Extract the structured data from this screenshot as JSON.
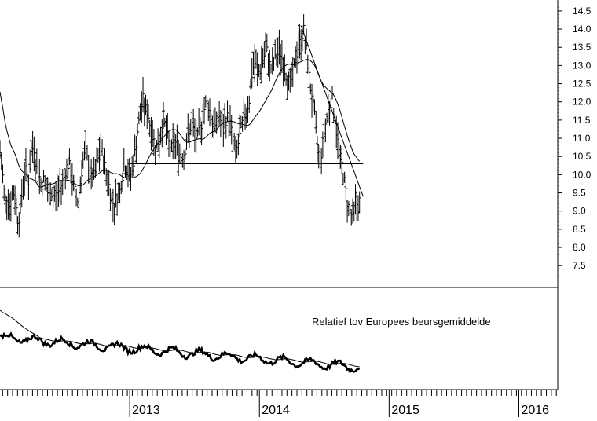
{
  "chart_data": [
    {
      "type": "line",
      "subtype": "ohlc-bar",
      "panel": "price",
      "x_unit": "year",
      "xlim": [
        2012.0,
        2016.3
      ],
      "ylim": [
        6.9,
        14.8
      ],
      "y_axis_side": "right",
      "yticks": [
        "14.5",
        "14.0",
        "13.5",
        "13.0",
        "12.5",
        "12.0",
        "11.5",
        "11.0",
        "10.5",
        "10.0",
        "9.5",
        "9.0",
        "8.5",
        "8.0",
        "7.5"
      ],
      "ytick_values": [
        14.5,
        14.0,
        13.5,
        13.0,
        12.5,
        12.0,
        11.5,
        11.0,
        10.5,
        10.0,
        9.5,
        9.0,
        8.5,
        8.0,
        7.5
      ],
      "price_path": [
        [
          2012.0,
          10.6
        ],
        [
          2012.02,
          10.0
        ],
        [
          2012.04,
          9.2
        ],
        [
          2012.06,
          9.5
        ],
        [
          2012.08,
          9.0
        ],
        [
          2012.1,
          9.6
        ],
        [
          2012.12,
          9.2
        ],
        [
          2012.14,
          8.7
        ],
        [
          2012.16,
          9.1
        ],
        [
          2012.18,
          9.9
        ],
        [
          2012.2,
          10.1
        ],
        [
          2012.22,
          9.8
        ],
        [
          2012.24,
          10.6
        ],
        [
          2012.26,
          10.8
        ],
        [
          2012.28,
          10.2
        ],
        [
          2012.3,
          10.0
        ],
        [
          2012.32,
          9.7
        ],
        [
          2012.34,
          9.9
        ],
        [
          2012.36,
          9.6
        ],
        [
          2012.38,
          9.4
        ],
        [
          2012.4,
          9.5
        ],
        [
          2012.42,
          9.4
        ],
        [
          2012.44,
          9.5
        ],
        [
          2012.46,
          9.6
        ],
        [
          2012.48,
          9.8
        ],
        [
          2012.5,
          10.0
        ],
        [
          2012.52,
          10.3
        ],
        [
          2012.54,
          10.2
        ],
        [
          2012.56,
          9.8
        ],
        [
          2012.58,
          9.5
        ],
        [
          2012.6,
          9.3
        ],
        [
          2012.62,
          9.8
        ],
        [
          2012.64,
          10.4
        ],
        [
          2012.66,
          10.6
        ],
        [
          2012.68,
          10.3
        ],
        [
          2012.7,
          9.9
        ],
        [
          2012.72,
          9.9
        ],
        [
          2012.74,
          10.1
        ],
        [
          2012.76,
          10.5
        ],
        [
          2012.78,
          10.7
        ],
        [
          2012.8,
          10.4
        ],
        [
          2012.82,
          10.0
        ],
        [
          2012.84,
          9.7
        ],
        [
          2012.86,
          9.3
        ],
        [
          2012.88,
          9.2
        ],
        [
          2012.9,
          9.4
        ],
        [
          2012.92,
          9.5
        ],
        [
          2012.94,
          9.9
        ],
        [
          2012.96,
          10.3
        ],
        [
          2012.98,
          10.1
        ],
        [
          2013.0,
          9.9
        ],
        [
          2013.02,
          10.2
        ],
        [
          2013.04,
          10.6
        ],
        [
          2013.06,
          11.2
        ],
        [
          2013.08,
          11.6
        ],
        [
          2013.1,
          12.1
        ],
        [
          2013.12,
          11.8
        ],
        [
          2013.14,
          11.7
        ],
        [
          2013.16,
          11.3
        ],
        [
          2013.18,
          11.0
        ],
        [
          2013.2,
          10.8
        ],
        [
          2013.22,
          10.8
        ],
        [
          2013.24,
          11.1
        ],
        [
          2013.26,
          11.6
        ],
        [
          2013.28,
          11.2
        ],
        [
          2013.3,
          10.9
        ],
        [
          2013.32,
          10.7
        ],
        [
          2013.34,
          10.8
        ],
        [
          2013.36,
          10.9
        ],
        [
          2013.38,
          10.6
        ],
        [
          2013.4,
          10.5
        ],
        [
          2013.42,
          10.6
        ],
        [
          2013.44,
          10.9
        ],
        [
          2013.46,
          11.2
        ],
        [
          2013.48,
          11.4
        ],
        [
          2013.5,
          11.1
        ],
        [
          2013.52,
          11.0
        ],
        [
          2013.54,
          11.2
        ],
        [
          2013.56,
          11.5
        ],
        [
          2013.58,
          11.9
        ],
        [
          2013.6,
          12.0
        ],
        [
          2013.62,
          11.7
        ],
        [
          2013.64,
          11.4
        ],
        [
          2013.66,
          11.3
        ],
        [
          2013.68,
          11.6
        ],
        [
          2013.7,
          11.5
        ],
        [
          2013.72,
          11.2
        ],
        [
          2013.74,
          11.5
        ],
        [
          2013.76,
          11.6
        ],
        [
          2013.78,
          11.3
        ],
        [
          2013.8,
          10.8
        ],
        [
          2013.82,
          10.6
        ],
        [
          2013.84,
          10.9
        ],
        [
          2013.86,
          11.3
        ],
        [
          2013.88,
          11.5
        ],
        [
          2013.9,
          11.8
        ],
        [
          2013.92,
          12.0
        ],
        [
          2013.94,
          12.7
        ],
        [
          2013.96,
          13.1
        ],
        [
          2013.98,
          12.9
        ],
        [
          2014.0,
          12.8
        ],
        [
          2014.02,
          13.1
        ],
        [
          2014.04,
          13.3
        ],
        [
          2014.06,
          13.4
        ],
        [
          2014.08,
          13.0
        ],
        [
          2014.1,
          12.9
        ],
        [
          2014.12,
          13.2
        ],
        [
          2014.14,
          13.3
        ],
        [
          2014.16,
          13.4
        ],
        [
          2014.18,
          13.1
        ],
        [
          2014.2,
          12.8
        ],
        [
          2014.22,
          12.6
        ],
        [
          2014.24,
          12.5
        ],
        [
          2014.26,
          12.8
        ],
        [
          2014.28,
          13.2
        ],
        [
          2014.3,
          13.5
        ],
        [
          2014.32,
          13.7
        ],
        [
          2014.34,
          14.0
        ],
        [
          2014.36,
          13.5
        ],
        [
          2014.38,
          12.8
        ],
        [
          2014.4,
          12.2
        ],
        [
          2014.42,
          11.8
        ],
        [
          2014.44,
          11.0
        ],
        [
          2014.46,
          10.5
        ],
        [
          2014.48,
          10.6
        ],
        [
          2014.5,
          11.2
        ],
        [
          2014.52,
          11.6
        ],
        [
          2014.54,
          11.9
        ],
        [
          2014.56,
          12.1
        ],
        [
          2014.58,
          11.6
        ],
        [
          2014.6,
          11.0
        ],
        [
          2014.62,
          10.5
        ],
        [
          2014.64,
          10.2
        ],
        [
          2014.66,
          9.7
        ],
        [
          2014.68,
          9.2
        ],
        [
          2014.7,
          9.0
        ],
        [
          2014.72,
          8.8
        ],
        [
          2014.74,
          9.3
        ],
        [
          2014.76,
          9.1
        ],
        [
          2014.78,
          9.4
        ]
      ],
      "trend_line": [
        [
          2014.32,
          14.1
        ],
        [
          2014.8,
          9.4
        ]
      ],
      "support_line": {
        "y": 10.3,
        "x_from": 2013.0,
        "x_to": 2014.8
      }
    },
    {
      "type": "line",
      "panel": "relative",
      "label": "Relatief tov Europees beursgemiddelde",
      "xlim": [
        2012.0,
        2016.3
      ],
      "x_ticks": [
        "2013",
        "2014",
        "2015",
        "2016"
      ],
      "x_tick_values": [
        2013.0,
        2014.0,
        2015.0,
        2016.0
      ],
      "moving_average_visible": true,
      "grid": false
    }
  ]
}
